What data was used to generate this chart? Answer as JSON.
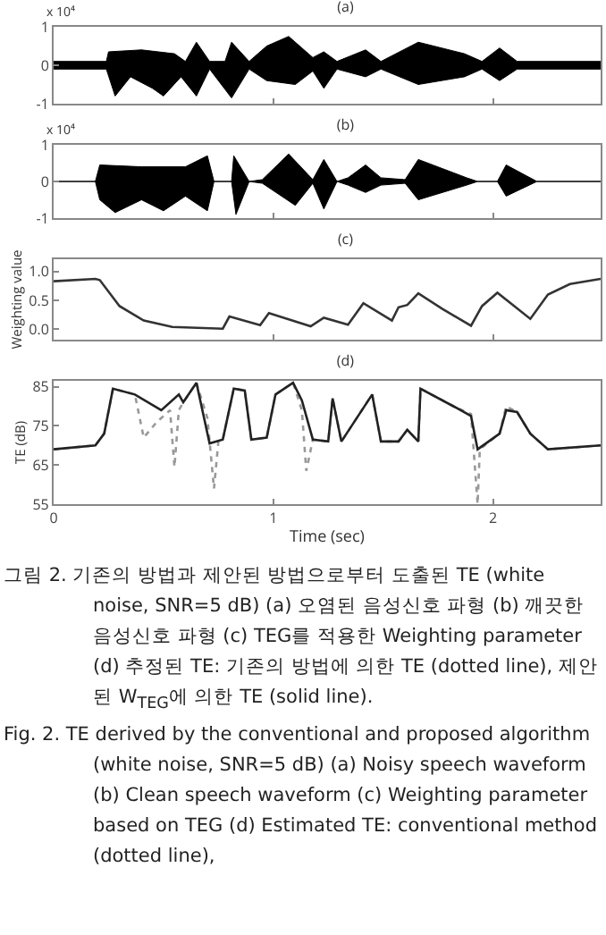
{
  "chart_data": [
    {
      "type": "area",
      "title": "(a)",
      "annotations": [
        "x 10⁴"
      ],
      "xlim": [
        0,
        2.49
      ],
      "xticks": [
        0,
        1,
        2
      ],
      "ylim": [
        -1,
        1
      ],
      "yticks": [
        -1,
        0,
        1
      ],
      "tick_labels": "y",
      "grid": false,
      "series": [
        {
          "color": "#000000",
          "x": [
            0,
            0.24,
            0.25,
            0.4,
            0.55,
            0.6,
            0.65,
            0.71,
            0.78,
            0.81,
            0.89,
            0.97,
            1.07,
            1.18,
            1.23,
            1.29,
            1.42,
            1.49,
            1.66,
            1.87,
            1.95,
            2.03,
            2.11,
            2.49
          ],
          "values": [
            0.1,
            0.1,
            0.35,
            0.4,
            0.3,
            0.1,
            0.6,
            0.1,
            0.1,
            0.6,
            0.1,
            0.5,
            0.75,
            0.2,
            0.35,
            0.1,
            0.4,
            0.1,
            0.6,
            0.3,
            0.1,
            0.45,
            0.1,
            0.1
          ]
        },
        {
          "color": "#000000",
          "x": [
            0,
            0.24,
            0.28,
            0.35,
            0.45,
            0.5,
            0.58,
            0.65,
            0.71,
            0.81,
            0.89,
            0.97,
            1.1,
            1.18,
            1.23,
            1.29,
            1.42,
            1.49,
            1.66,
            1.87,
            1.95,
            2.03,
            2.11,
            2.49
          ],
          "values": [
            -0.1,
            -0.1,
            -0.8,
            -0.3,
            -0.6,
            -0.8,
            -0.3,
            -0.8,
            -0.1,
            -0.85,
            -0.1,
            -0.4,
            -0.5,
            -0.15,
            -0.6,
            -0.1,
            -0.3,
            -0.1,
            -0.5,
            -0.3,
            -0.1,
            -0.4,
            -0.1,
            -0.1
          ]
        }
      ]
    },
    {
      "type": "area",
      "title": "(b)",
      "annotations": [
        "x 10⁴"
      ],
      "xlim": [
        0,
        2.49
      ],
      "xticks": [
        0,
        1,
        2
      ],
      "ylim": [
        -1,
        1
      ],
      "yticks": [
        -1,
        0,
        1
      ],
      "tick_labels": "y",
      "grid": false,
      "series": [
        {
          "color": "#000000",
          "x": [
            0,
            0.19,
            0.21,
            0.4,
            0.6,
            0.7,
            0.73,
            0.81,
            0.82,
            0.89,
            0.95,
            1.07,
            1.18,
            1.23,
            1.29,
            1.34,
            1.42,
            1.49,
            1.6,
            1.66,
            1.88,
            1.93,
            2.02,
            2.06,
            2.2,
            2.49
          ],
          "values": [
            0,
            0,
            0.45,
            0.4,
            0.4,
            0.7,
            0,
            0,
            0.7,
            0,
            0.05,
            0.75,
            0.05,
            0.6,
            0,
            0.1,
            0.45,
            0.1,
            0.05,
            0.6,
            0.1,
            0,
            0,
            0.45,
            0,
            0
          ]
        },
        {
          "color": "#000000",
          "x": [
            0,
            0.19,
            0.21,
            0.28,
            0.4,
            0.5,
            0.6,
            0.7,
            0.73,
            0.81,
            0.83,
            0.89,
            0.95,
            1.1,
            1.18,
            1.23,
            1.29,
            1.34,
            1.42,
            1.49,
            1.6,
            1.66,
            1.88,
            1.93,
            2.02,
            2.06,
            2.2,
            2.49
          ],
          "values": [
            0,
            0,
            -0.5,
            -0.85,
            -0.5,
            -0.8,
            -0.4,
            -0.8,
            0,
            0,
            -0.9,
            0,
            -0.05,
            -0.65,
            -0.05,
            -0.75,
            0,
            -0.1,
            -0.3,
            -0.1,
            -0.05,
            -0.5,
            -0.1,
            0,
            0,
            -0.4,
            0,
            0
          ]
        }
      ]
    },
    {
      "type": "line",
      "title": "(c)",
      "ylabel": "Weighting value",
      "xlim": [
        0,
        2.49
      ],
      "xticks": [
        0,
        1,
        2
      ],
      "ylim": [
        -0.18,
        1.21
      ],
      "yticks": [
        {
          "value": 0,
          "label": "0.0"
        },
        {
          "value": 0.5,
          "label": "0.5"
        },
        {
          "value": 1,
          "label": "1.0"
        }
      ],
      "tick_labels": "y",
      "grid": false,
      "marker": "none",
      "line_style": "solid",
      "series": [
        {
          "color": "#333333",
          "x": [
            0,
            0.19,
            0.21,
            0.3,
            0.41,
            0.54,
            0.77,
            0.8,
            0.94,
            0.98,
            1.17,
            1.23,
            1.34,
            1.41,
            1.54,
            1.57,
            1.61,
            1.66,
            1.77,
            1.9,
            1.95,
            2.02,
            2.17,
            2.25,
            2.35,
            2.49
          ],
          "values": [
            0.83,
            0.87,
            0.85,
            0.4,
            0.15,
            0.04,
            0.01,
            0.22,
            0.07,
            0.28,
            0.05,
            0.2,
            0.08,
            0.45,
            0.15,
            0.38,
            0.42,
            0.62,
            0.35,
            0.06,
            0.4,
            0.63,
            0.18,
            0.6,
            0.78,
            0.87
          ]
        }
      ]
    },
    {
      "type": "line",
      "title": "(d)",
      "xlabel": "Time (sec)",
      "ylabel": "TE (dB)",
      "xlim": [
        0,
        2.49
      ],
      "xticks": [
        0,
        1,
        2
      ],
      "ylim": [
        55,
        86.5
      ],
      "yticks": [
        55,
        65,
        75,
        85
      ],
      "grid": false,
      "marker": "none",
      "annotations": [
        "그림 2. 기존의 방법과 제안된 방법으로부터 도출된 TE (white noise, SNR=5 dB) (a) 오염된 음성신호 파형 (b) 깨끗한 음성신호 파형 (c) TEG를 적용한 Weighting parameter (d) 추정된 TE: 기존의 방법에 의한 TE (dotted line), 제안된 W$_{TEG}$에 의한 TE (solid line).",
        "Fig. 2. TE derived by the conventional and proposed algorithm (white noise, SNR=5 dB) (a) Noisy speech waveform (b) Clean speech waveform (c) Weighting parameter based on TEG (d) Estimated TE: conventional method (dotted line),"
      ],
      "series": [
        {
          "color": "#999999",
          "line_style": "dotted",
          "x": [
            0,
            0.19,
            0.23,
            0.27,
            0.37,
            0.41,
            0.47,
            0.53,
            0.55,
            0.57,
            0.59,
            0.65,
            0.7,
            0.73,
            0.75,
            0.77,
            0.82,
            0.87,
            0.9,
            0.97,
            1.01,
            1.09,
            1.13,
            1.15,
            1.18,
            1.25,
            1.27,
            1.31,
            1.45,
            1.49,
            1.57,
            1.61,
            1.66,
            1.67,
            1.82,
            1.9,
            1.93,
            1.94,
            2.03,
            2.06,
            2.11,
            2.17,
            2.25,
            2.49
          ],
          "values": [
            69,
            70,
            73,
            84.5,
            83,
            72,
            76,
            79,
            64.5,
            79,
            81,
            86,
            77,
            59,
            71,
            71.5,
            84.5,
            84,
            71.5,
            72,
            83,
            86,
            79,
            63.5,
            71.5,
            71,
            82,
            71,
            83,
            71,
            71,
            74,
            71,
            84.5,
            80,
            78,
            55,
            69,
            73,
            80,
            78.5,
            73,
            69,
            70
          ]
        },
        {
          "color": "#222222",
          "line_style": "solid",
          "x": [
            0,
            0.19,
            0.23,
            0.27,
            0.37,
            0.49,
            0.57,
            0.59,
            0.65,
            0.71,
            0.77,
            0.82,
            0.87,
            0.9,
            0.97,
            1.01,
            1.09,
            1.13,
            1.18,
            1.25,
            1.27,
            1.31,
            1.45,
            1.49,
            1.57,
            1.61,
            1.66,
            1.67,
            1.82,
            1.9,
            1.93,
            2.03,
            2.06,
            2.11,
            2.17,
            2.25,
            2.49
          ],
          "values": [
            69,
            70,
            73,
            84.5,
            83,
            79,
            83,
            81,
            86,
            70.5,
            71.5,
            84.5,
            84,
            71.5,
            72,
            83,
            86,
            81.5,
            71.5,
            71,
            82,
            71,
            83,
            71,
            71,
            74,
            71,
            84.5,
            80,
            77.5,
            69,
            73,
            79,
            78.5,
            73,
            69,
            70
          ]
        }
      ]
    }
  ]
}
